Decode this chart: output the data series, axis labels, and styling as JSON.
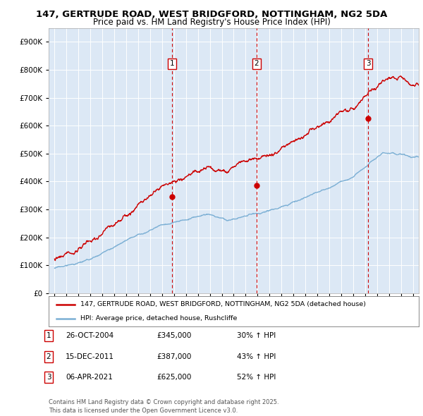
{
  "title_line1": "147, GERTRUDE ROAD, WEST BRIDGFORD, NOTTINGHAM, NG2 5DA",
  "title_line2": "Price paid vs. HM Land Registry's House Price Index (HPI)",
  "plot_bg_color": "#dce8f5",
  "ylim": [
    0,
    950000
  ],
  "yticks": [
    0,
    100000,
    200000,
    300000,
    400000,
    500000,
    600000,
    700000,
    800000,
    900000
  ],
  "sale_dates_num": [
    2004.82,
    2011.92,
    2021.27
  ],
  "sale_prices": [
    345000,
    387000,
    625000
  ],
  "sale_labels": [
    "1",
    "2",
    "3"
  ],
  "legend_red": "147, GERTRUDE ROAD, WEST BRIDGFORD, NOTTINGHAM, NG2 5DA (detached house)",
  "legend_blue": "HPI: Average price, detached house, Rushcliffe",
  "table_rows": [
    [
      "1",
      "26-OCT-2004",
      "£345,000",
      "30% ↑ HPI"
    ],
    [
      "2",
      "15-DEC-2011",
      "£387,000",
      "43% ↑ HPI"
    ],
    [
      "3",
      "06-APR-2021",
      "£625,000",
      "52% ↑ HPI"
    ]
  ],
  "footer": "Contains HM Land Registry data © Crown copyright and database right 2025.\nThis data is licensed under the Open Government Licence v3.0.",
  "red_color": "#cc0000",
  "blue_color": "#7bafd4",
  "grid_color": "#ffffff"
}
